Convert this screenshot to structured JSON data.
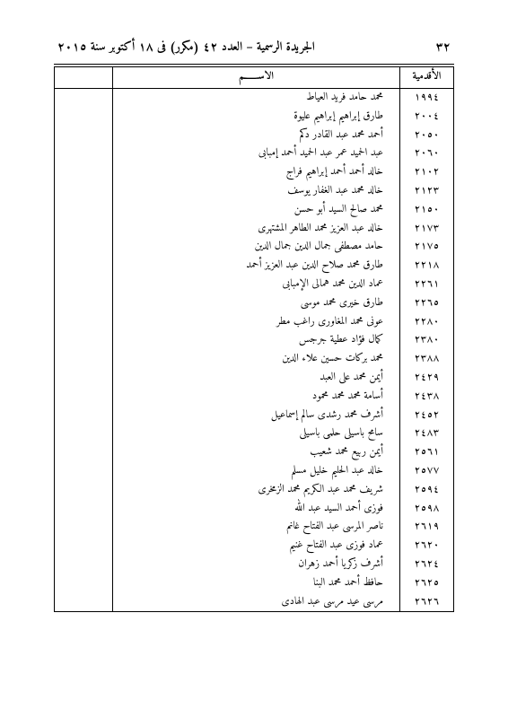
{
  "header": {
    "page_number": "٣٢",
    "journal_text": "الجريدة الرسمية – العدد ٤٢ (مكرر) فى ١٨ أكتوبر سنة ٢٠١٥"
  },
  "table": {
    "columns": {
      "seniority": "الأقدمية",
      "name": "الاســـــــم",
      "empty": ""
    },
    "rows": [
      {
        "seniority": "١٩٩٤",
        "name": "محمد حامد فريد العياط"
      },
      {
        "seniority": "٢٠٠٤",
        "name": "طارق إبراهيم إبراهيم عليوة"
      },
      {
        "seniority": "٢٠٥٠",
        "name": "أحمد محمد عبد القادر دكم"
      },
      {
        "seniority": "٢٠٦٠",
        "name": "عبد الحميد عمر عبد الحميد أحمد إمبابى"
      },
      {
        "seniority": "٢١٠٢",
        "name": "خالد أحمد أحمد إبراهيم فراج"
      },
      {
        "seniority": "٢١٢٣",
        "name": "خالد محمد عبد الغفار يوسف"
      },
      {
        "seniority": "٢١٥٠",
        "name": "محمد صالح السيد أبو حسن"
      },
      {
        "seniority": "٢١٧٣",
        "name": "خالد عبد العزيز محمد الطاهر المشتهرى"
      },
      {
        "seniority": "٢١٧٥",
        "name": "حامد مصطفى جمال الدين جمال الدين"
      },
      {
        "seniority": "٢٢١٨",
        "name": "طارق محمد صلاح الدين عبد العزيز أحمد"
      },
      {
        "seniority": "٢٢٦١",
        "name": "عماد الدين محمد همالى الإمبابى"
      },
      {
        "seniority": "٢٢٦٥",
        "name": "طارق خيرى محمد موسى"
      },
      {
        "seniority": "٢٢٨٠",
        "name": "عونى محمد المغاورى راغب مطر"
      },
      {
        "seniority": "٢٣٨٠",
        "name": "كمال فؤاد عطية جرجس"
      },
      {
        "seniority": "٢٣٨٨",
        "name": "محمد بركات حسين علاء الدين"
      },
      {
        "seniority": "٢٤٢٩",
        "name": "أيمن محمد على العبد"
      },
      {
        "seniority": "٢٤٣٨",
        "name": "أسامة محمد محمد محمود"
      },
      {
        "seniority": "٢٤٥٢",
        "name": "أشرف محمد رشدى سالم إسماعيل"
      },
      {
        "seniority": "٢٤٨٣",
        "name": "سامح باسيلى حلمى باسيلى"
      },
      {
        "seniority": "٢٥٦١",
        "name": "أيمن ربيع محمد شعيب"
      },
      {
        "seniority": "٢٥٧٧",
        "name": "خالد عبد الحليم خليل مسلم"
      },
      {
        "seniority": "٢٥٩٤",
        "name": "شريف محمد عبد الكريم محمد الزمخرى"
      },
      {
        "seniority": "٢٥٩٨",
        "name": "فوزى أحمد السيد عبد الله"
      },
      {
        "seniority": "٢٦١٩",
        "name": "ناصر المرسى عبد الفتاح غانم"
      },
      {
        "seniority": "٢٦٢٠",
        "name": "عماد فوزى عبد الفتاح غنيم"
      },
      {
        "seniority": "٢٦٢٤",
        "name": "أشرف زكريا أحمد زهران"
      },
      {
        "seniority": "٢٦٢٥",
        "name": "حافظ أحمد محمد البنا"
      },
      {
        "seniority": "٢٦٢٦",
        "name": "مرسى عيد مرسى عبد الهادى"
      }
    ]
  },
  "style": {
    "background_color": "#ffffff",
    "text_color": "#000000",
    "border_color": "#000000",
    "header_fontsize": 14,
    "body_fontsize": 12
  }
}
